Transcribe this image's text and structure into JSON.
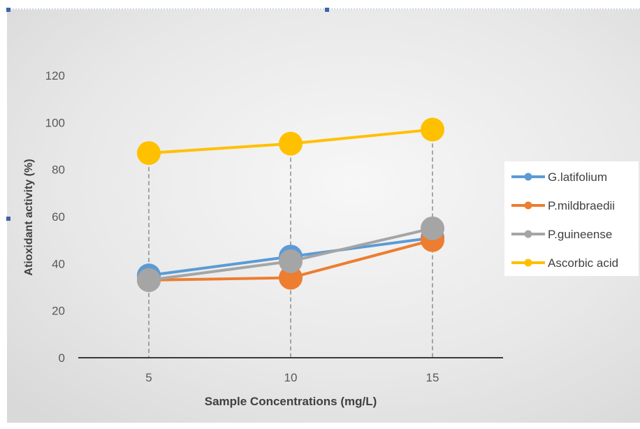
{
  "chart_data": {
    "type": "line",
    "title": "",
    "xlabel": "Sample Concentrations (mg/L)",
    "ylabel": "Atioxidant activity (%)",
    "x": [
      5,
      10,
      15
    ],
    "x_tick_labels": [
      "5",
      "10",
      "15"
    ],
    "ylim": [
      0,
      120
    ],
    "y_ticks": [
      0,
      20,
      40,
      60,
      80,
      100,
      120
    ],
    "grid": false,
    "drop_lines": true,
    "legend_position": "right",
    "series": [
      {
        "name": "G.latifolium",
        "color": "#5B9BD5",
        "values": [
          35,
          43,
          51
        ]
      },
      {
        "name": "P.mildbraedii",
        "color": "#ED7D31",
        "values": [
          33,
          34,
          50
        ]
      },
      {
        "name": "P.guineense",
        "color": "#A5A5A5",
        "values": [
          33,
          41,
          55
        ]
      },
      {
        "name": "Ascorbic acid",
        "color": "#FFC000",
        "values": [
          87,
          91,
          97
        ]
      }
    ]
  }
}
